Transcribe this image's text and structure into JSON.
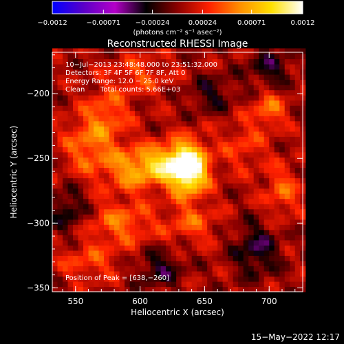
{
  "colorbar": {
    "tick_labels": [
      "−0.0012",
      "−0.00071",
      "−0.00024",
      "0.00024",
      "0.00071",
      "0.0012"
    ],
    "tick_values": [
      -0.0012,
      -0.00071,
      -0.00024,
      0.00024,
      0.00071,
      0.0012
    ],
    "range": [
      -0.0012,
      0.0012
    ],
    "units_label": "(photons cm⁻² s⁻¹ asec⁻²)",
    "colormap": [
      "#0000ff",
      "#5a00c8",
      "#b400c8",
      "#000000",
      "#8b0000",
      "#ff2000",
      "#ff9000",
      "#ffe000",
      "#ffffff"
    ]
  },
  "chart_data": {
    "type": "heatmap",
    "title": "Reconstructed RHESSI Image",
    "xlabel": "Heliocentric X (arcsec)",
    "ylabel": "Heliocentric Y (arcsec)",
    "xlim": [
      532,
      726
    ],
    "ylim": [
      -353,
      -168
    ],
    "x_ticks": [
      550,
      600,
      650,
      700
    ],
    "y_ticks": [
      -200,
      -250,
      -300,
      -350
    ],
    "x_tick_labels": [
      "550",
      "600",
      "650",
      "700"
    ],
    "y_tick_labels": [
      "−200",
      "−250",
      "−300",
      "−350"
    ],
    "annotations": {
      "line1": "10−Jul−2013 23:48:48.000 to 23:51:32.000",
      "line2": "Detectors: 3F 4F 5F 6F 7F 8F, Att 0",
      "line3": "Energy Range: 12.0 − 25.0 keV",
      "line4_method": "Clean",
      "line4_counts": "Total counts: 5.66E+03",
      "peak": "Position of Peak = [638,−260]"
    },
    "peak_position": [
      638,
      -260
    ],
    "peak_value": 0.0012,
    "sources": [
      {
        "x": 638,
        "y": -258,
        "amp": 1.0,
        "sx": 10,
        "sy": 14
      },
      {
        "x": 622,
        "y": -254,
        "amp": 0.55,
        "sx": 14,
        "sy": 10
      },
      {
        "x": 595,
        "y": -258,
        "amp": 0.45,
        "sx": 16,
        "sy": 12
      },
      {
        "x": 560,
        "y": -240,
        "amp": 0.35,
        "sx": 14,
        "sy": 16
      },
      {
        "x": 575,
        "y": -215,
        "amp": 0.3,
        "sx": 12,
        "sy": 14
      },
      {
        "x": 700,
        "y": -212,
        "amp": 0.35,
        "sx": 9,
        "sy": 10
      },
      {
        "x": 710,
        "y": -275,
        "amp": 0.3,
        "sx": 10,
        "sy": 14
      },
      {
        "x": 585,
        "y": -300,
        "amp": 0.35,
        "sx": 18,
        "sy": 12
      },
      {
        "x": 560,
        "y": -330,
        "amp": 0.25,
        "sx": 16,
        "sy": 10
      },
      {
        "x": 640,
        "y": -300,
        "amp": 0.28,
        "sx": 14,
        "sy": 10
      },
      {
        "x": 680,
        "y": -240,
        "amp": 0.22,
        "sx": 12,
        "sy": 14
      },
      {
        "x": 600,
        "y": -185,
        "amp": 0.25,
        "sx": 16,
        "sy": 10
      },
      {
        "x": 690,
        "y": -320,
        "amp": -0.35,
        "sx": 12,
        "sy": 14
      },
      {
        "x": 545,
        "y": -290,
        "amp": -0.3,
        "sx": 10,
        "sy": 12
      },
      {
        "x": 700,
        "y": -180,
        "amp": -0.3,
        "sx": 12,
        "sy": 10
      },
      {
        "x": 655,
        "y": -200,
        "amp": -0.25,
        "sx": 12,
        "sy": 10
      },
      {
        "x": 615,
        "y": -335,
        "amp": -0.3,
        "sx": 12,
        "sy": 10
      }
    ]
  },
  "timestamp": "15−May−2022 12:17"
}
